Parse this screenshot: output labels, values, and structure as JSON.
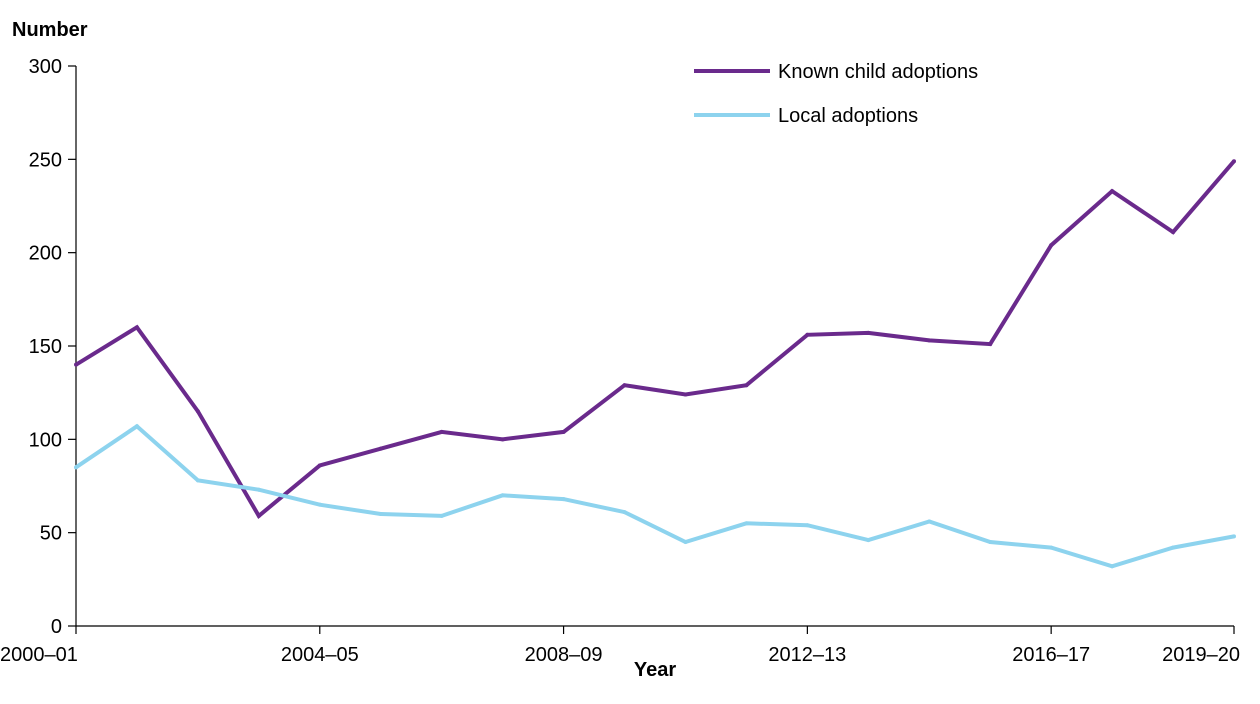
{
  "chart_data": {
    "type": "line",
    "ylabel": "Number",
    "xlabel": "Year",
    "ylim": [
      0,
      300
    ],
    "yticks": [
      0,
      50,
      100,
      150,
      200,
      250,
      300
    ],
    "x": [
      "2000–01",
      "2001–02",
      "2002–03",
      "2003–04",
      "2004–05",
      "2005–06",
      "2006–07",
      "2007–08",
      "2008–09",
      "2009–10",
      "2010–11",
      "2011–12",
      "2012–13",
      "2013–14",
      "2014–15",
      "2015–16",
      "2016–17",
      "2017–18",
      "2018–19",
      "2019–20"
    ],
    "labeled_x_ticks": [
      "2000–01",
      "2004–05",
      "2008–09",
      "2012–13",
      "2016–17",
      "2019–20"
    ],
    "grid": false,
    "legend_position": "top-right",
    "series": [
      {
        "name": "Known child adoptions",
        "color": "#6a2a8c",
        "values": [
          140,
          160,
          115,
          59,
          86,
          95,
          104,
          100,
          104,
          129,
          124,
          129,
          156,
          157,
          153,
          151,
          204,
          233,
          211,
          249
        ]
      },
      {
        "name": "Local adoptions",
        "color": "#8dd3ee",
        "values": [
          85,
          107,
          78,
          73,
          65,
          60,
          59,
          70,
          68,
          61,
          45,
          55,
          54,
          46,
          56,
          45,
          42,
          32,
          42,
          48
        ]
      }
    ]
  }
}
